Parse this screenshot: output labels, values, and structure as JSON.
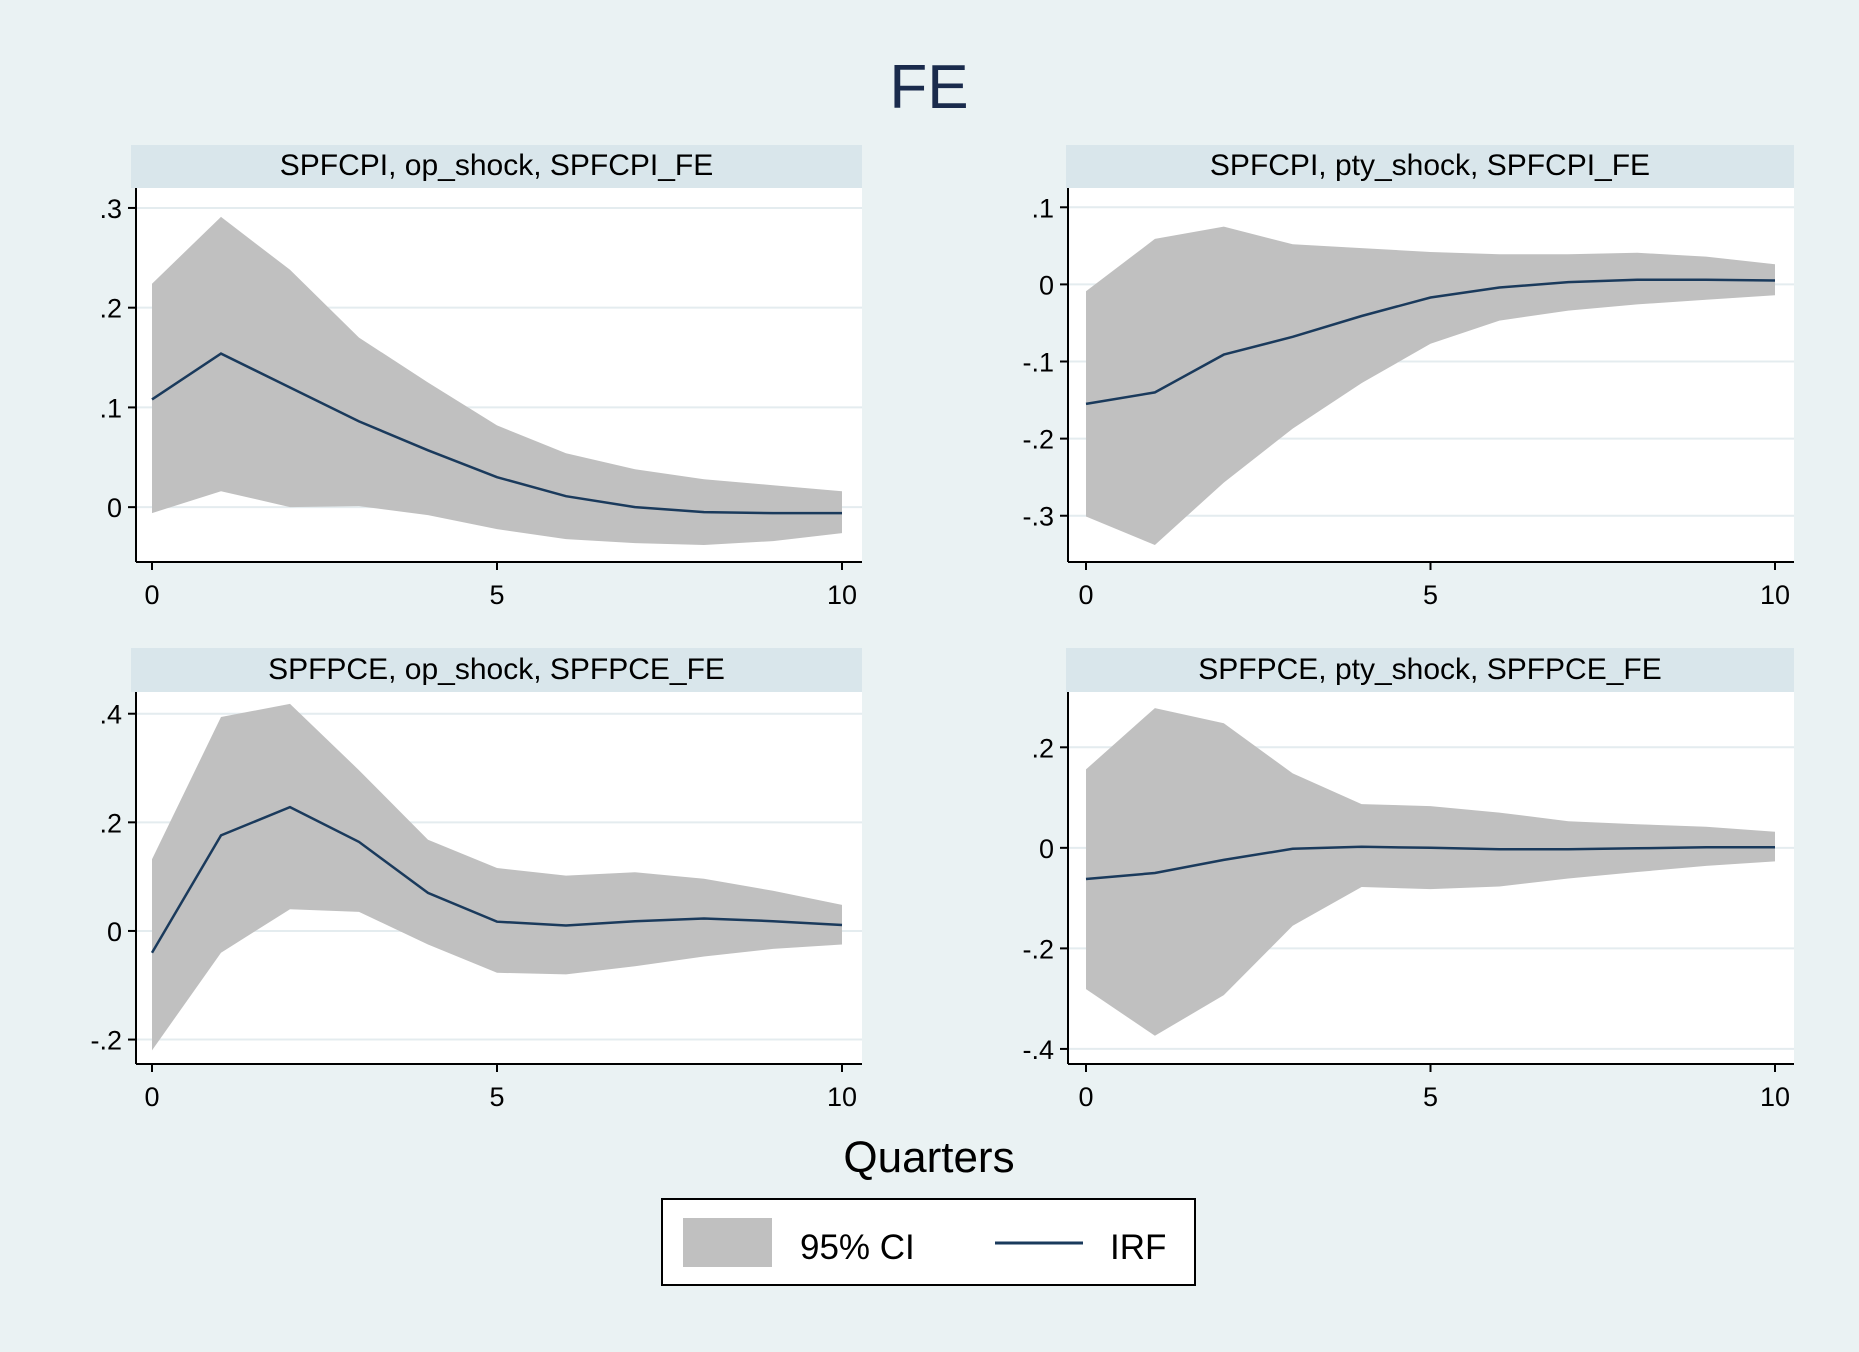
{
  "figure": {
    "title": "FE",
    "xlabel": "Quarters"
  },
  "legend": {
    "ci_label": "95% CI",
    "irf_label": "IRF"
  },
  "colors": {
    "background": "#eaf2f3",
    "plot_bg": "#ffffff",
    "strip_bg": "#d9e6eb",
    "ci_fill": "#c0c0c0",
    "irf_line": "#1a3a5c",
    "title": "#1a2b4c"
  },
  "chart_data": [
    {
      "type": "area",
      "title": "SPFCPI, op_shock, SPFCPI_FE",
      "x": [
        0,
        1,
        2,
        3,
        4,
        5,
        6,
        7,
        8,
        9,
        10
      ],
      "xticks": [
        0,
        5,
        10
      ],
      "xtick_labels": [
        "0",
        "5",
        "10"
      ],
      "yticks": [
        0,
        0.1,
        0.2,
        0.3
      ],
      "ytick_labels": [
        "0",
        ".1",
        ".2",
        ".3"
      ],
      "ylim": [
        -0.055,
        0.32
      ],
      "series": [
        {
          "name": "IRF",
          "values": [
            0.108,
            0.154,
            0.12,
            0.086,
            0.057,
            0.03,
            0.011,
            0.0,
            -0.005,
            -0.006,
            -0.006
          ]
        },
        {
          "name": "95% CI",
          "lower": [
            -0.006,
            0.016,
            0.0,
            0.001,
            -0.008,
            -0.022,
            -0.032,
            -0.036,
            -0.038,
            -0.034,
            -0.026
          ],
          "upper": [
            0.224,
            0.291,
            0.238,
            0.17,
            0.125,
            0.082,
            0.054,
            0.038,
            0.028,
            0.022,
            0.016
          ]
        }
      ]
    },
    {
      "type": "area",
      "title": "SPFCPI, pty_shock, SPFCPI_FE",
      "x": [
        0,
        1,
        2,
        3,
        4,
        5,
        6,
        7,
        8,
        9,
        10
      ],
      "xticks": [
        0,
        5,
        10
      ],
      "xtick_labels": [
        "0",
        "5",
        "10"
      ],
      "yticks": [
        -0.3,
        -0.2,
        -0.1,
        0,
        0.1
      ],
      "ytick_labels": [
        "-.3",
        "-.2",
        "-.1",
        "0",
        ".1"
      ],
      "ylim": [
        -0.36,
        0.125
      ],
      "series": [
        {
          "name": "IRF",
          "values": [
            -0.155,
            -0.14,
            -0.091,
            -0.068,
            -0.041,
            -0.017,
            -0.004,
            0.003,
            0.006,
            0.006,
            0.005
          ]
        },
        {
          "name": "95% CI",
          "lower": [
            -0.301,
            -0.338,
            -0.257,
            -0.187,
            -0.128,
            -0.077,
            -0.047,
            -0.034,
            -0.026,
            -0.02,
            -0.014
          ],
          "upper": [
            -0.009,
            0.059,
            0.075,
            0.052,
            0.047,
            0.042,
            0.039,
            0.039,
            0.041,
            0.036,
            0.026
          ]
        }
      ]
    },
    {
      "type": "area",
      "title": "SPFPCE, op_shock, SPFPCE_FE",
      "x": [
        0,
        1,
        2,
        3,
        4,
        5,
        6,
        7,
        8,
        9,
        10
      ],
      "xticks": [
        0,
        5,
        10
      ],
      "xtick_labels": [
        "0",
        "5",
        "10"
      ],
      "yticks": [
        -0.2,
        0,
        0.2,
        0.4
      ],
      "ytick_labels": [
        "-.2",
        "0",
        ".2",
        ".4"
      ],
      "ylim": [
        -0.245,
        0.44
      ],
      "series": [
        {
          "name": "IRF",
          "values": [
            -0.04,
            0.176,
            0.228,
            0.164,
            0.07,
            0.017,
            0.01,
            0.018,
            0.023,
            0.018,
            0.011
          ]
        },
        {
          "name": "95% CI",
          "lower": [
            -0.22,
            -0.04,
            0.04,
            0.035,
            -0.025,
            -0.077,
            -0.08,
            -0.065,
            -0.047,
            -0.033,
            -0.025
          ],
          "upper": [
            0.132,
            0.394,
            0.418,
            0.296,
            0.168,
            0.116,
            0.102,
            0.108,
            0.096,
            0.074,
            0.048
          ]
        }
      ]
    },
    {
      "type": "area",
      "title": "SPFPCE, pty_shock, SPFPCE_FE",
      "x": [
        0,
        1,
        2,
        3,
        4,
        5,
        6,
        7,
        8,
        9,
        10
      ],
      "xticks": [
        0,
        5,
        10
      ],
      "xtick_labels": [
        "0",
        "5",
        "10"
      ],
      "yticks": [
        -0.4,
        -0.2,
        0,
        0.2
      ],
      "ytick_labels": [
        "-.4",
        "-.2",
        "0",
        ".2"
      ],
      "ylim": [
        -0.43,
        0.31
      ],
      "series": [
        {
          "name": "IRF",
          "values": [
            -0.062,
            -0.05,
            -0.024,
            -0.002,
            0.002,
            0.0,
            -0.003,
            -0.003,
            -0.001,
            0.001,
            0.001
          ]
        },
        {
          "name": "95% CI",
          "lower": [
            -0.281,
            -0.374,
            -0.293,
            -0.155,
            -0.078,
            -0.082,
            -0.077,
            -0.061,
            -0.048,
            -0.036,
            -0.027
          ],
          "upper": [
            0.156,
            0.278,
            0.248,
            0.148,
            0.087,
            0.083,
            0.07,
            0.053,
            0.047,
            0.042,
            0.032
          ]
        }
      ]
    }
  ]
}
